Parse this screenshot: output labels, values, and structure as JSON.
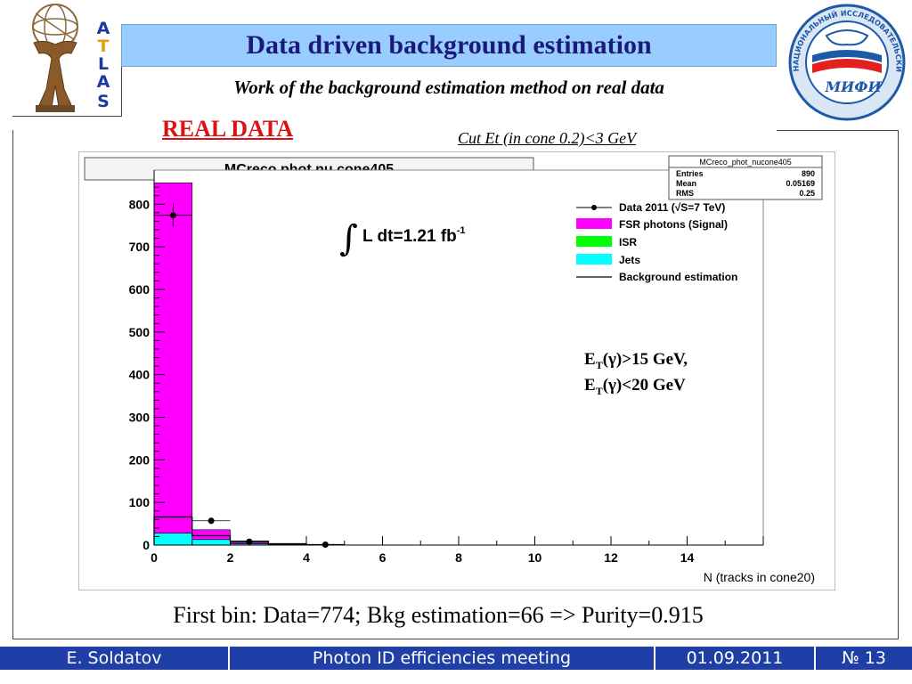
{
  "header": {
    "title": "Data driven background estimation",
    "subtitle": "Work of the background estimation method on real data",
    "logo_left_letters": [
      "A",
      "T",
      "L",
      "A",
      "S"
    ],
    "logo_right_text": "НАЦИОНАЛЬНЫЙ ИССЛЕДОВАТЕЛЬСКИЙ ЯДЕРНЫЙ УНИВЕРСИТЕТ",
    "logo_right_mark": "МИФИ"
  },
  "labels": {
    "real_data": "REAL DATA",
    "cut": "Cut Et (in cone 0.2)<3 GeV"
  },
  "colors": {
    "title_bar": "#99ccff",
    "signal": "#ff00ff",
    "isr": "#00ff00",
    "jets": "#00ffff",
    "real_data": "#dd1111",
    "footer": "#1f3fa6"
  },
  "chart_data": {
    "type": "bar",
    "title": "MCreco phot nu cone405",
    "xlabel": "N (tracks in cone20)",
    "ylabel": "",
    "xlim": [
      0,
      16
    ],
    "ylim": [
      0,
      880
    ],
    "x_ticks": [
      "0",
      "2",
      "4",
      "6",
      "8",
      "10",
      "12",
      "14"
    ],
    "y_ticks": [
      "0",
      "100",
      "200",
      "300",
      "400",
      "500",
      "600",
      "700",
      "800"
    ],
    "bins": [
      [
        0,
        1
      ],
      [
        1,
        2
      ],
      [
        2,
        3
      ],
      [
        3,
        4
      ],
      [
        4,
        5
      ]
    ],
    "stacked": [
      {
        "name": "Jets",
        "values": [
          28,
          13,
          3,
          1,
          0
        ]
      },
      {
        "name": "ISR",
        "values": [
          0,
          0,
          0,
          0,
          0
        ]
      },
      {
        "name": "FSR photons (Signal)",
        "values": [
          822,
          23,
          3,
          1,
          0
        ]
      }
    ],
    "background_estimation": [
      66,
      22,
      9,
      3,
      1
    ],
    "data_points": {
      "name": "Data 2011 (√S=7 TeV)",
      "x": [
        0.5,
        1.5,
        2.5,
        4.5
      ],
      "y": [
        774,
        57,
        8,
        1
      ],
      "yerr": [
        28,
        8,
        3,
        1
      ]
    },
    "stats_box": {
      "title": "MCreco_phot_nucone405",
      "rows": [
        [
          "Entries",
          "890"
        ],
        [
          "Mean",
          "0.05169"
        ],
        [
          "RMS",
          "0.25"
        ]
      ]
    },
    "legend": {
      "position": "top-right",
      "entries": [
        "Data 2011 (√S=7 TeV)",
        "FSR photons (Signal)",
        "ISR",
        "Jets",
        "Background estimation"
      ]
    },
    "lumi": "L dt=1.21 fb",
    "lumi_sup": "-1",
    "cut_text_line1": "E",
    "cut_text_line1_sub": "T",
    "cut_text_line1_rest": "(γ)>15 GeV,",
    "cut_text_line2": "E",
    "cut_text_line2_sub": "T",
    "cut_text_line2_rest": "(γ)<20 GeV",
    "integral": "∫"
  },
  "caption": "First bin: Data=774; Bkg estimation=66 => Purity=0.915",
  "footer": {
    "author": "E. Soldatov",
    "meeting": "Photon ID efficiencies meeting",
    "date": "01.09.2011",
    "slide_no": "№ 13"
  }
}
